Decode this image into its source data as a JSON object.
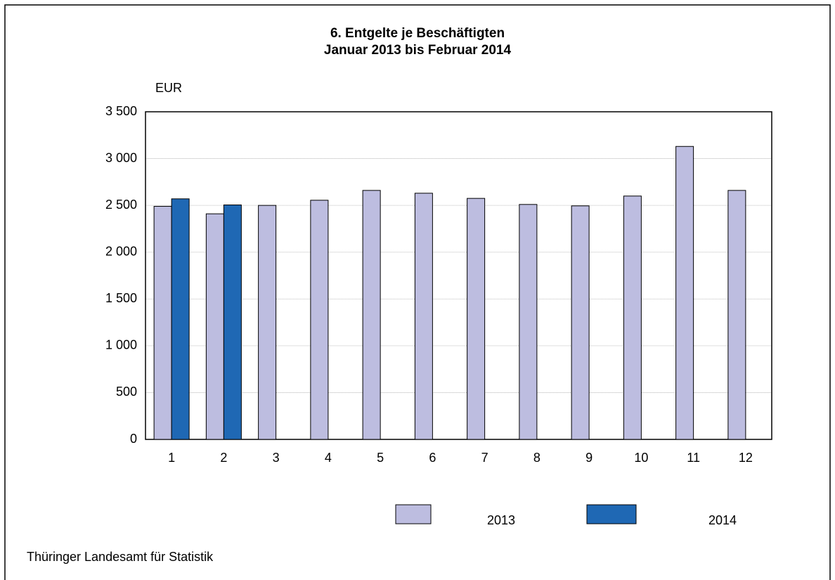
{
  "chart_data": {
    "type": "bar",
    "title": "6. Entgelte je Beschäftigten",
    "subtitle": "Januar 2013 bis Februar 2014",
    "y_label": "EUR",
    "source": "Thüringer Landesamt für Statistik",
    "categories": [
      "1",
      "2",
      "3",
      "4",
      "5",
      "6",
      "7",
      "8",
      "9",
      "10",
      "11",
      "12"
    ],
    "series": [
      {
        "name": "2013",
        "color": "#bdbde0",
        "values": [
          2490,
          2410,
          2500,
          2555,
          2660,
          2630,
          2575,
          2510,
          2495,
          2600,
          3130,
          2660
        ]
      },
      {
        "name": "2014",
        "color": "#1f68b4",
        "values": [
          2570,
          2505,
          null,
          null,
          null,
          null,
          null,
          null,
          null,
          null,
          null,
          null
        ]
      }
    ],
    "ylim": [
      0,
      3500
    ],
    "yticks": [
      0,
      500,
      {
        "value": 1000,
        "label": "1 000"
      },
      {
        "value": 1500,
        "label": "1 500"
      },
      {
        "value": 2000,
        "label": "2 000"
      },
      {
        "value": 2500,
        "label": "2 500"
      },
      {
        "value": 3000,
        "label": "3 000"
      },
      {
        "value": 3500,
        "label": "3 500"
      }
    ],
    "grid": true
  }
}
